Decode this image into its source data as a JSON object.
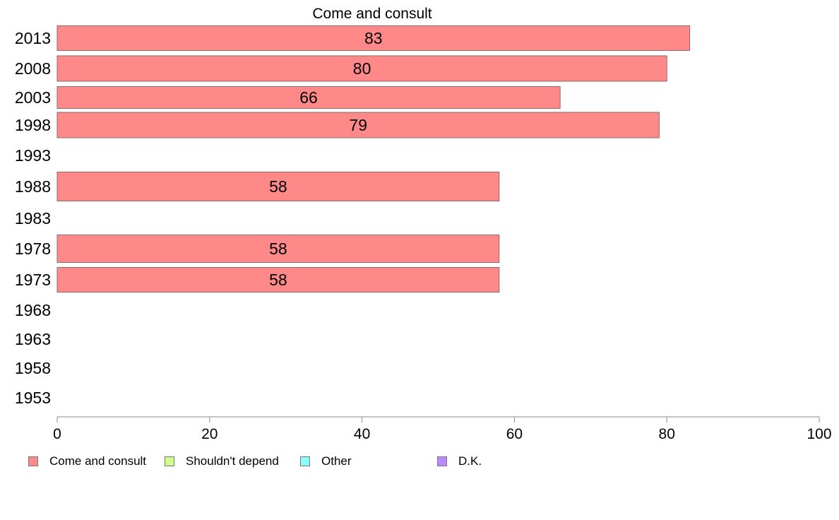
{
  "chart_data": {
    "type": "bar",
    "orientation": "horizontal",
    "title": "Come and consult",
    "categories": [
      "2013",
      "2008",
      "2003",
      "1998",
      "1993",
      "1988",
      "1983",
      "1978",
      "1973",
      "1968",
      "1963",
      "1958",
      "1953"
    ],
    "series": [
      {
        "name": "Come and consult",
        "color": "#ff8888",
        "values": [
          83,
          80,
          66,
          79,
          null,
          58,
          null,
          58,
          58,
          null,
          null,
          null,
          null
        ]
      },
      {
        "name": "Shouldn't depend",
        "color": "#ccff88",
        "values": [
          null,
          null,
          null,
          null,
          null,
          null,
          null,
          null,
          null,
          null,
          null,
          null,
          null
        ]
      },
      {
        "name": "Other",
        "color": "#88ffff",
        "values": [
          null,
          null,
          null,
          null,
          null,
          null,
          null,
          null,
          null,
          null,
          null,
          null,
          null
        ]
      },
      {
        "name": "D.K.",
        "color": "#bb88ff",
        "values": [
          null,
          null,
          null,
          null,
          null,
          null,
          null,
          null,
          null,
          null,
          null,
          null,
          null
        ]
      }
    ],
    "xlim": [
      0,
      100
    ],
    "xticks": [
      "0",
      "20",
      "40",
      "60",
      "80",
      "100"
    ],
    "xlabel": "",
    "ylabel": "",
    "grid": false,
    "legend_position": "bottom"
  }
}
